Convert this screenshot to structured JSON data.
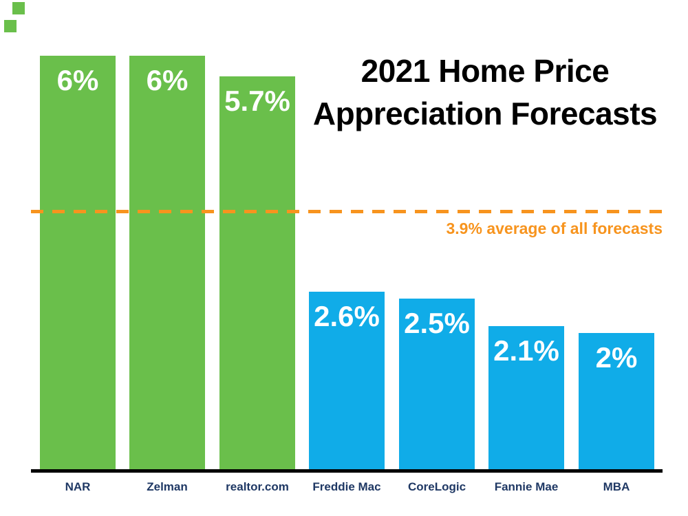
{
  "slide": {
    "title_line1": "2021 Home Price",
    "title_line2": "Appreciation Forecasts"
  },
  "branding": {
    "top_left_squares_count": "2",
    "square_color": "#6ABF4B"
  },
  "colors": {
    "green": "#6ABF4B",
    "blue": "#10ACE8",
    "orange": "#F7941E",
    "navy": "#1F3864",
    "axis": "#000000",
    "bar_label": "#FFFFFF",
    "title": "#000000"
  },
  "average_line_text": "3.9% average of all forecasts",
  "chart_data": {
    "type": "bar",
    "title": "2021 Home Price Appreciation Forecasts",
    "categories": [
      "NAR",
      "Zelman",
      "realtor.com",
      "Freddie Mac",
      "CoreLogic",
      "Fannie Mae",
      "MBA"
    ],
    "values": [
      6,
      6,
      5.7,
      2.6,
      2.5,
      2.1,
      2
    ],
    "value_labels": [
      "6%",
      "6%",
      "5.7%",
      "2.6%",
      "2.5%",
      "2.1%",
      "2%"
    ],
    "series_colors": [
      "green",
      "green",
      "green",
      "blue",
      "blue",
      "blue",
      "blue"
    ],
    "unit": "percent",
    "ylim": [
      0,
      6
    ],
    "grid": false,
    "legend": false,
    "y_axis_visible": false,
    "average_line": {
      "value": 3.9,
      "label": "3.9% average of all forecasts",
      "style": "dashed",
      "color": "#F7941E"
    }
  }
}
